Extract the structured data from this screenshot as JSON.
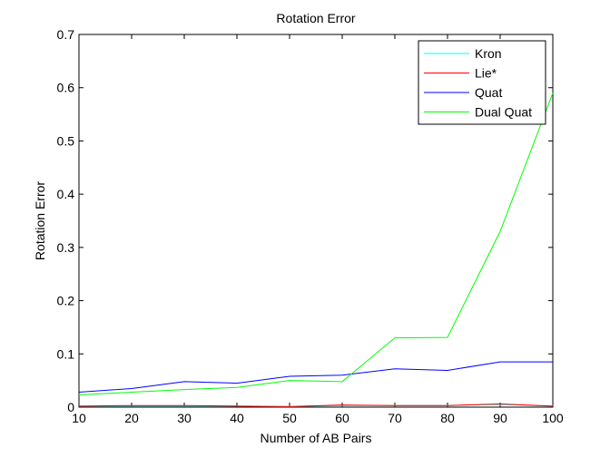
{
  "chart_data": {
    "type": "line",
    "title": "Rotation Error",
    "xlabel": "Number of AB Pairs",
    "ylabel": "Rotation Error",
    "xlim": [
      10,
      100
    ],
    "ylim": [
      0,
      0.7
    ],
    "xticks": [
      "10",
      "20",
      "30",
      "40",
      "50",
      "60",
      "70",
      "80",
      "90",
      "100"
    ],
    "yticks": [
      "0",
      "0.1",
      "0.2",
      "0.3",
      "0.4",
      "0.5",
      "0.6",
      "0.7"
    ],
    "x": [
      10,
      20,
      30,
      40,
      50,
      60,
      70,
      80,
      90,
      100
    ],
    "grid": false,
    "legend_position": "top-right",
    "series": [
      {
        "name": "Kron",
        "color": "#00ffff",
        "values": [
          0.002,
          0.002,
          0.002,
          0.002,
          0.001,
          0.003,
          0.003,
          0.003,
          0.005,
          0.002
        ]
      },
      {
        "name": "Lie*",
        "color": "#ff0000",
        "values": [
          0.002,
          0.003,
          0.003,
          0.002,
          0.001,
          0.004,
          0.003,
          0.003,
          0.006,
          0.002
        ]
      },
      {
        "name": "Quat",
        "color": "#0000ff",
        "values": [
          0.028,
          0.035,
          0.048,
          0.045,
          0.058,
          0.06,
          0.072,
          0.069,
          0.085,
          0.085
        ]
      },
      {
        "name": "Dual Quat",
        "color": "#00ff00",
        "values": [
          0.023,
          0.028,
          0.033,
          0.037,
          0.05,
          0.048,
          0.13,
          0.131,
          0.33,
          0.59
        ]
      }
    ]
  }
}
